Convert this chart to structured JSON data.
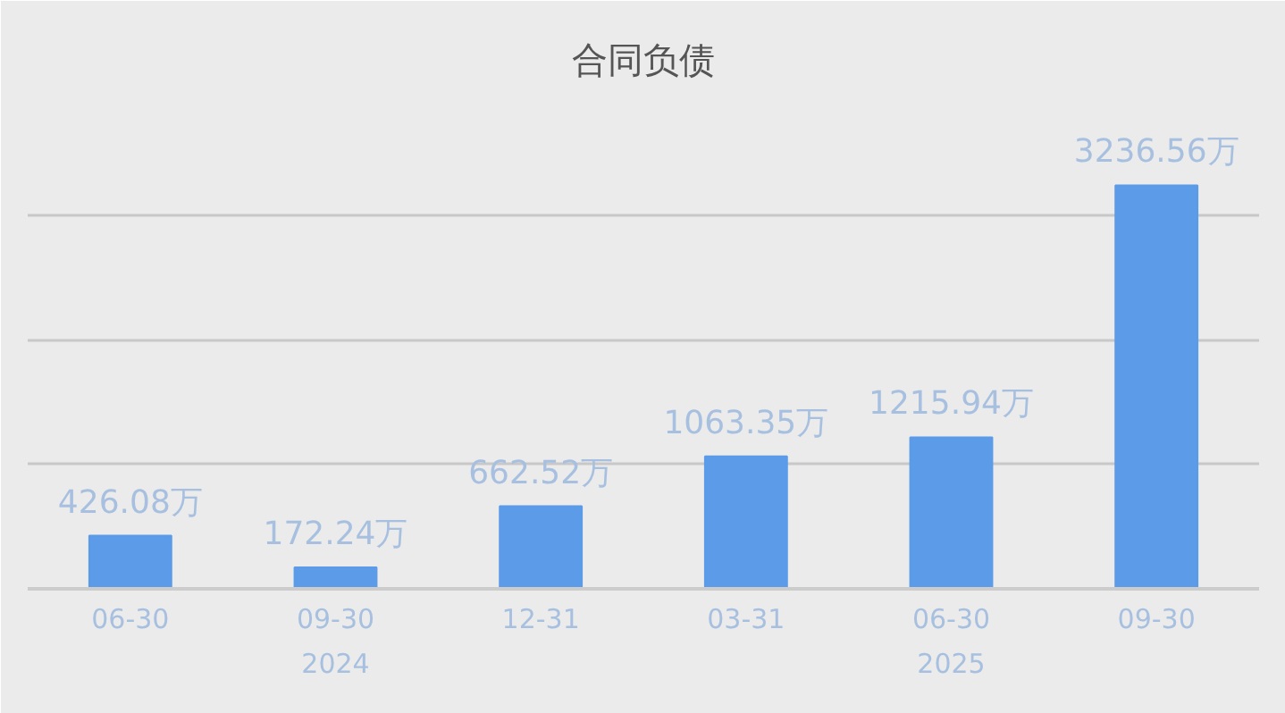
{
  "chart_data": {
    "type": "bar",
    "title": "合同负债",
    "categories": [
      "06-30",
      "09-30",
      "12-31",
      "03-31",
      "06-30",
      "09-30"
    ],
    "values": [
      426.08,
      172.24,
      662.52,
      1063.35,
      1215.94,
      3236.56
    ],
    "value_labels": [
      "426.08万",
      "172.24万",
      "662.52万",
      "1063.35万",
      "1215.94万",
      "3236.56万"
    ],
    "color": "#5b9be8",
    "ylim": [
      0,
      4000
    ],
    "yticks": [
      {
        "value": 0,
        "label": null
      },
      {
        "value": 1000,
        "label": null
      },
      {
        "value": 2000,
        "label": null
      },
      {
        "value": 3000,
        "label": null
      },
      {
        "value": 4000,
        "label": null
      }
    ],
    "tick_labels": "x",
    "grid": "y",
    "annotations": [
      "2024",
      "2025"
    ]
  }
}
